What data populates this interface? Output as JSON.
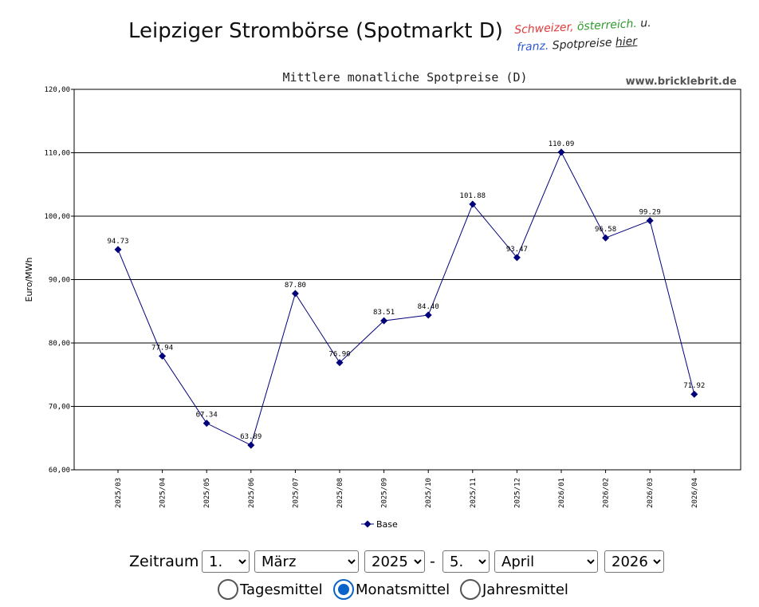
{
  "page": {
    "title": "Leipziger Strombörse (Spotmarkt D)",
    "promo": {
      "word1": "Schweizer,",
      "word2": "österreich.",
      "word3": "u.",
      "word4": "franz.",
      "word5": "Spotpreise",
      "word6": "hier"
    }
  },
  "chart_data": {
    "type": "line",
    "title": "Mittlere monatliche Spotpreise (D)",
    "watermark": "www.bricklebrit.de",
    "xlabel": "",
    "ylabel": "Euro/MWh",
    "ylim": [
      60,
      120
    ],
    "yticks": [
      "60,00",
      "70,00",
      "80,00",
      "90,00",
      "100,00",
      "110,00",
      "120,00"
    ],
    "categories": [
      "2025/03",
      "2025/04",
      "2025/05",
      "2025/06",
      "2025/07",
      "2025/08",
      "2025/09",
      "2025/10",
      "2025/11",
      "2025/12",
      "2026/01",
      "2026/02",
      "2026/03",
      "2026/04"
    ],
    "series": [
      {
        "name": "Base",
        "color": "#00007a",
        "values": [
          94.73,
          77.94,
          67.34,
          63.89,
          87.8,
          76.9,
          83.51,
          84.4,
          101.88,
          93.47,
          110.09,
          96.58,
          99.29,
          71.92
        ],
        "labels": [
          "94.73",
          "77.94",
          "67.34",
          "63.89",
          "87.80",
          "76.90",
          "83.51",
          "84.40",
          "101.88",
          "93.47",
          "110.09",
          "96.58",
          "99.29",
          "71.92"
        ]
      }
    ],
    "grid": true,
    "legend_position": "bottom"
  },
  "controls": {
    "label": "Zeitraum",
    "separator": "-",
    "from_day": "1.",
    "from_month": "März",
    "from_year": "2025",
    "to_day": "5.",
    "to_month": "April",
    "to_year": "2026",
    "radio_options": [
      "Tagesmittel",
      "Monatsmittel",
      "Jahresmittel"
    ],
    "selected_radio": "Monatsmittel",
    "accent_color": "#0a64c8"
  }
}
